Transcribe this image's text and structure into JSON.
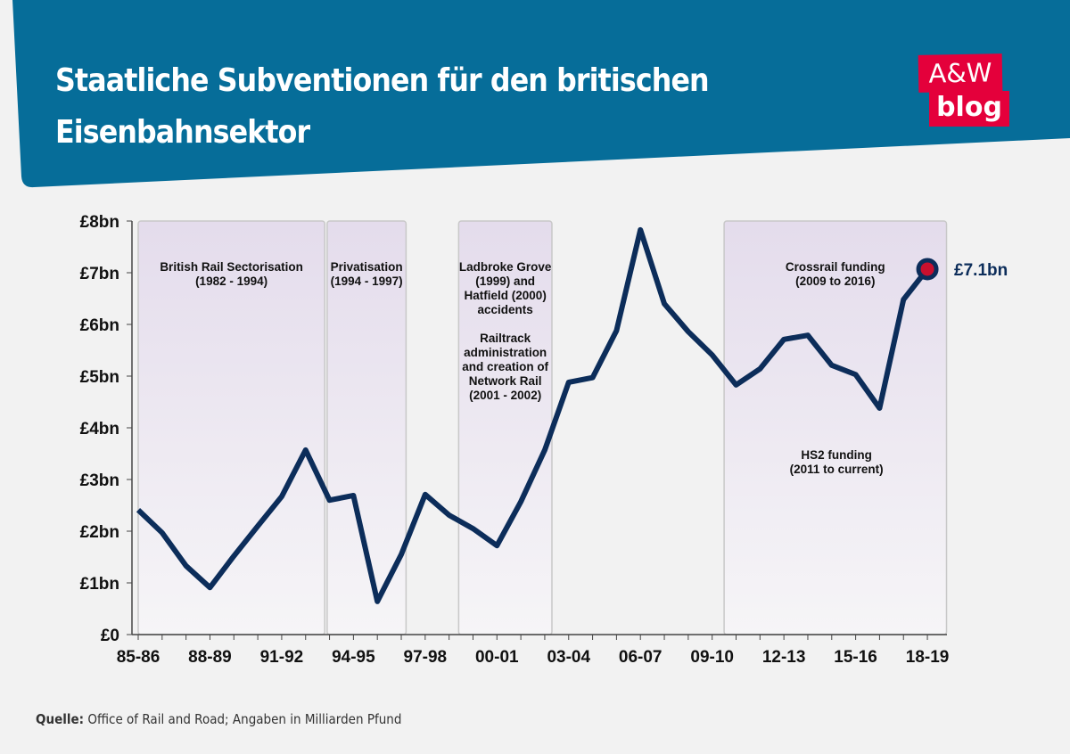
{
  "header": {
    "title_line1": "Staatliche Subventionen für den britischen",
    "title_line2": "Eisenbahnsektor",
    "logo_top": "A&W",
    "logo_bottom": "blog"
  },
  "source": {
    "label": "Quelle:",
    "text": " Office of Rail and Road; Angaben in Milliarden Pfund"
  },
  "colors": {
    "banner": "#066d99",
    "line": "#0c2d5a",
    "logo": "#e4003b",
    "marker_fill": "#c8102e"
  },
  "chart_data": {
    "type": "line",
    "title": "",
    "ylim": [
      0,
      8
    ],
    "yticks": [
      "£0",
      "£1bn",
      "£2bn",
      "£3bn",
      "£4bn",
      "£5bn",
      "£6bn",
      "£7bn",
      "£8bn"
    ],
    "x": [
      "85-86",
      "86-87",
      "87-88",
      "88-89",
      "89-90",
      "90-91",
      "91-92",
      "92-93",
      "93-94",
      "94-95",
      "95-96",
      "96-97",
      "97-98",
      "98-99",
      "99-00",
      "00-01",
      "01-02",
      "02-03",
      "03-04",
      "04-05",
      "05-06",
      "06-07",
      "07-08",
      "08-09",
      "09-10",
      "10-11",
      "11-12",
      "12-13",
      "13-14",
      "14-15",
      "15-16",
      "16-17",
      "17-18",
      "18-19"
    ],
    "xtick_labels": [
      "85-86",
      "88-89",
      "91-92",
      "94-95",
      "97-98",
      "00-01",
      "03-04",
      "06-07",
      "09-10",
      "12-13",
      "15-16",
      "18-19"
    ],
    "values": [
      2.41,
      1.97,
      1.33,
      0.91,
      1.52,
      2.1,
      2.67,
      3.57,
      2.6,
      2.69,
      0.64,
      1.55,
      2.71,
      2.31,
      2.05,
      1.72,
      2.57,
      3.57,
      4.88,
      4.97,
      5.88,
      7.83,
      6.4,
      5.86,
      5.41,
      4.83,
      5.14,
      5.71,
      5.79,
      5.21,
      5.03,
      4.38,
      6.48,
      7.07
    ],
    "end_label": "£7.1bn",
    "periods": [
      {
        "from": 0,
        "to": 7.8,
        "lines": [
          "British Rail Sectorisation",
          "(1982 - 1994)"
        ]
      },
      {
        "from": 7.9,
        "to": 11.2,
        "lines": [
          "Privatisation",
          "(1994 - 1997)"
        ]
      },
      {
        "from": 13.4,
        "to": 17.3,
        "lines": [
          "Ladbroke Grove",
          "(1999) and",
          "Hatfield (2000)",
          "accidents",
          "",
          "Railtrack",
          "administration",
          "and creation of",
          "Network Rail",
          "(2001 - 2002)"
        ]
      },
      {
        "from": 24.5,
        "to": 33.8,
        "lines": [
          "Crossrail funding",
          "(2009 to 2016)"
        ]
      }
    ],
    "annotations": [
      {
        "x": 29.2,
        "y": 3.4,
        "lines": [
          "HS2 funding",
          "(2011 to current)"
        ]
      }
    ],
    "grid": false
  }
}
